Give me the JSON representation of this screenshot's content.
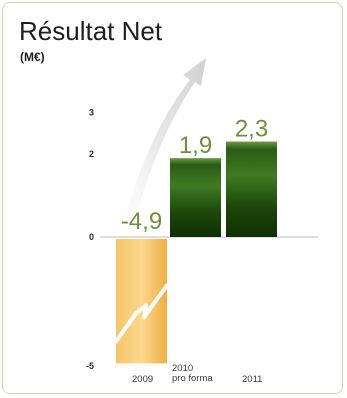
{
  "chart_data": {
    "type": "bar",
    "title": "Résultat Net",
    "subtitle": "(M€)",
    "categories": [
      [
        "2009"
      ],
      [
        "2010",
        "pro forma"
      ],
      [
        "2011"
      ]
    ],
    "values": [
      -4.9,
      1.9,
      2.3
    ],
    "data_labels": [
      "-4,9",
      "1,9",
      "2,3"
    ],
    "yticks": [
      3,
      2,
      0,
      -5
    ],
    "ytick_labels": [
      "3",
      "2",
      "0",
      "-5"
    ],
    "ylim": [
      -5,
      3
    ],
    "grid": false,
    "legend": "none",
    "colors": {
      "negative": "#f1b24a",
      "positive": "#1f4d0e",
      "label": "#6f8f3d",
      "frame": "#d8d2a8"
    }
  }
}
